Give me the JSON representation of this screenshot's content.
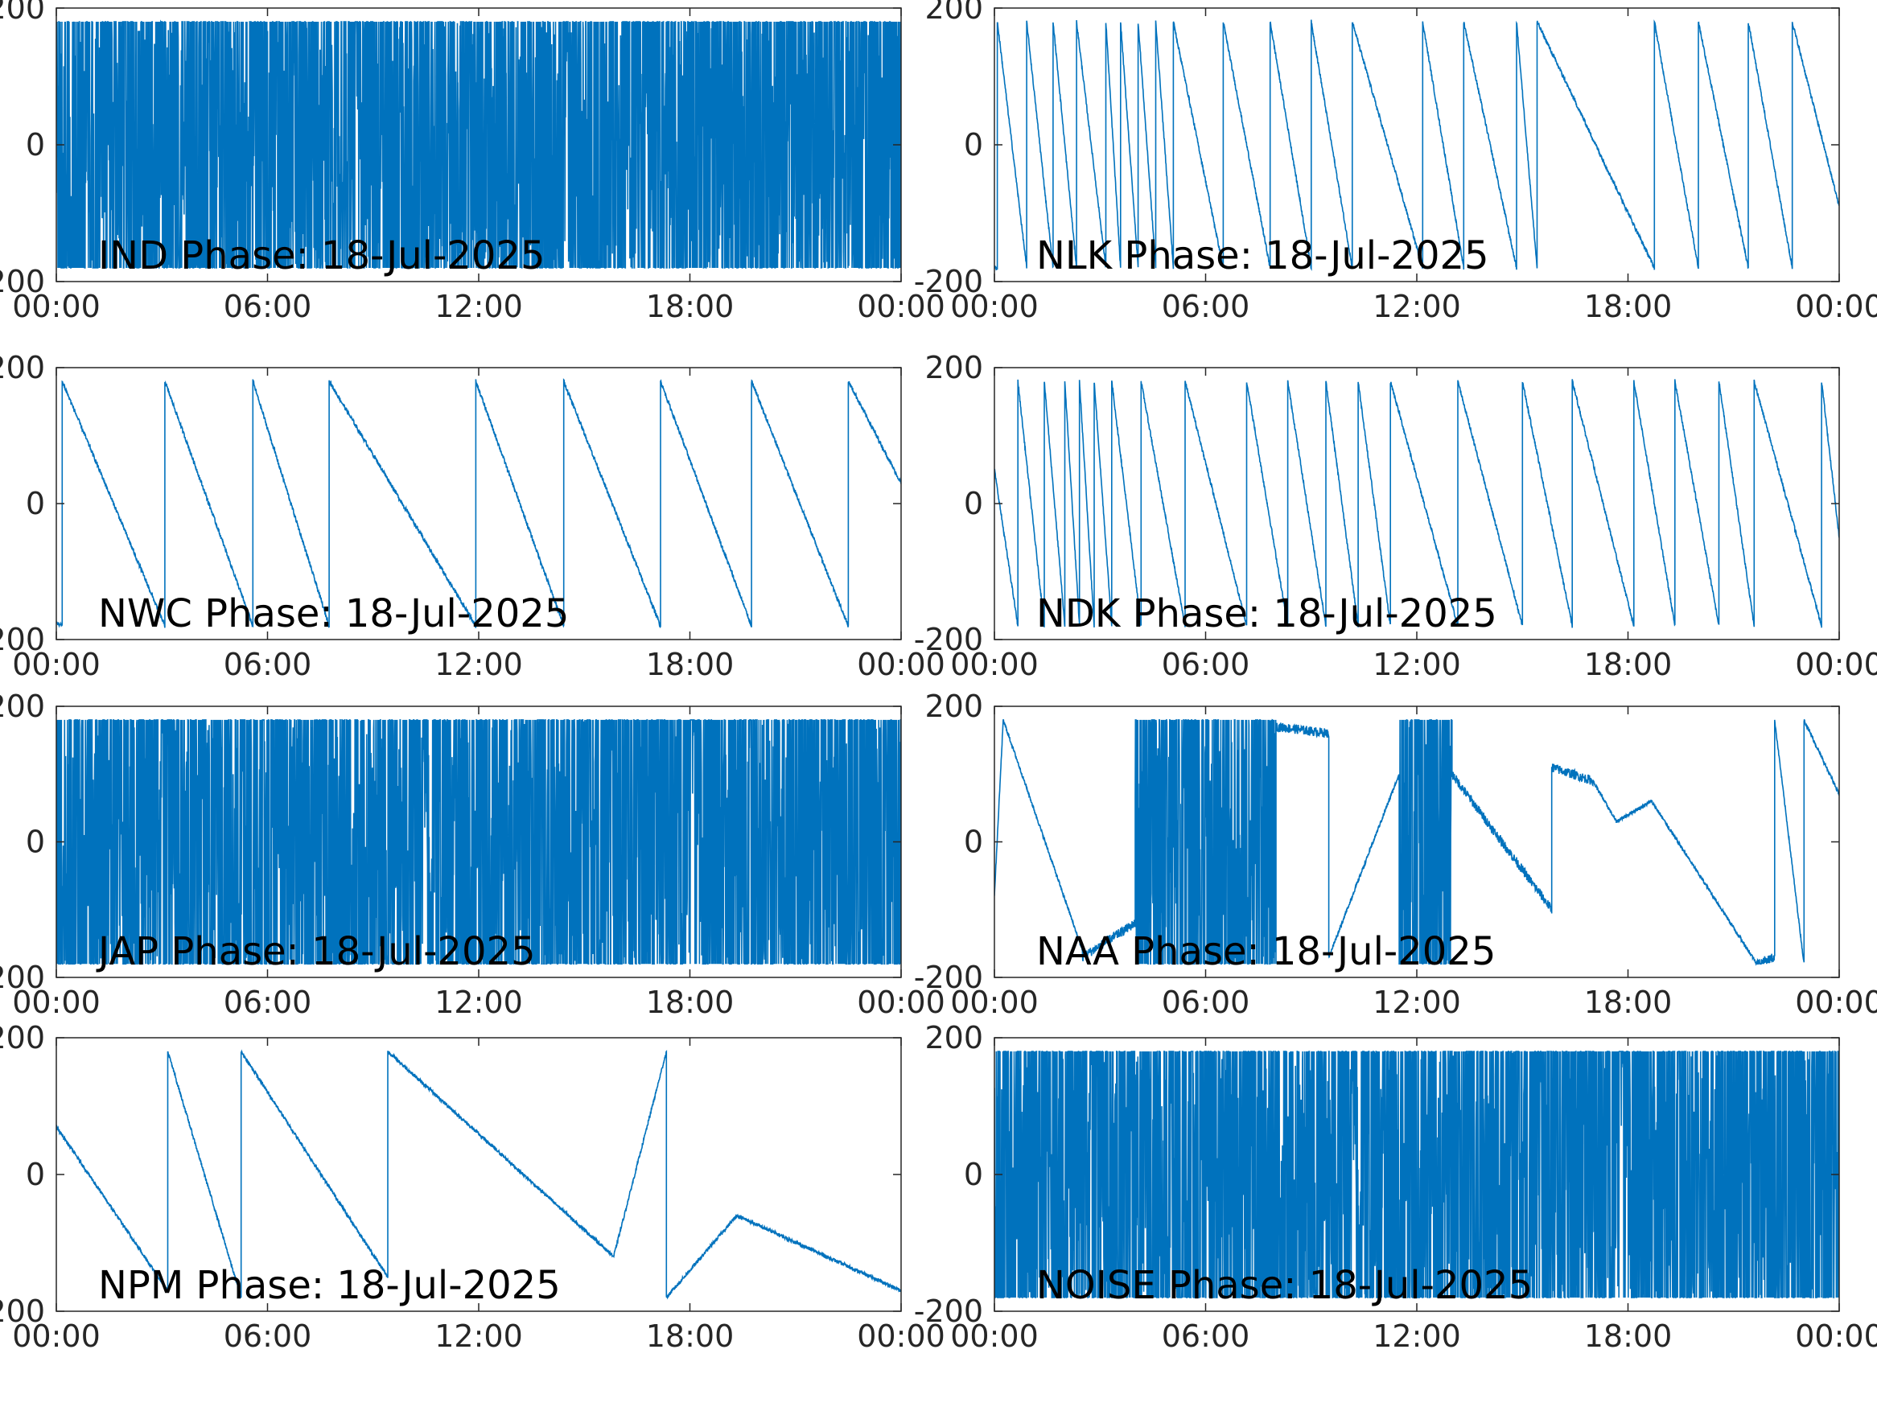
{
  "chart_data": [
    {
      "type": "line",
      "title": "IND Phase: 18-Jul-2025",
      "xlim": [
        "00:00",
        "24:00"
      ],
      "xticks": [
        "00:00",
        "06:00",
        "12:00",
        "18:00",
        "00:00"
      ],
      "ylim": [
        -200,
        200
      ],
      "yticks": [
        "-200",
        "0",
        "200"
      ],
      "color": "#0072BD",
      "grid": false,
      "segments": [
        {
          "start": "00:00",
          "end": "24:00",
          "shape": "dense-wrap",
          "y_range": [
            -180,
            180
          ]
        }
      ]
    },
    {
      "type": "line",
      "title": "NLK Phase: 18-Jul-2025",
      "xlim": [
        "00:00",
        "24:00"
      ],
      "xticks": [
        "00:00",
        "06:00",
        "12:00",
        "18:00",
        "00:00"
      ],
      "ylim": [
        -200,
        200
      ],
      "yticks": [
        "-200",
        "0",
        "200"
      ],
      "color": "#0072BD",
      "grid": false,
      "y_start": -180,
      "wraps": [
        "00:05",
        "00:55",
        "01:40",
        "02:20",
        "03:10",
        "03:35",
        "04:05",
        "04:35",
        "05:05",
        "06:30",
        "07:50",
        "09:00",
        "10:10",
        "12:10",
        "13:20",
        "14:50",
        "15:25",
        "18:45",
        "20:00",
        "21:25",
        "22:40"
      ],
      "y_end": -90
    },
    {
      "type": "line",
      "title": "NWC Phase: 18-Jul-2025",
      "xlim": [
        "00:00",
        "24:00"
      ],
      "xticks": [
        "00:00",
        "06:00",
        "12:00",
        "18:00",
        "00:00"
      ],
      "ylim": [
        -200,
        200
      ],
      "yticks": [
        "-200",
        "0",
        "200"
      ],
      "color": "#0072BD",
      "grid": false,
      "y_start": -175,
      "wraps": [
        "00:10",
        "03:05",
        "05:35",
        "07:45",
        "11:55",
        "14:25",
        "17:10",
        "19:45",
        "22:30"
      ],
      "y_end": 30
    },
    {
      "type": "line",
      "title": "NDK Phase: 18-Jul-2025",
      "xlim": [
        "00:00",
        "24:00"
      ],
      "xticks": [
        "00:00",
        "06:00",
        "12:00",
        "18:00",
        "00:00"
      ],
      "ylim": [
        -200,
        200
      ],
      "yticks": [
        "-200",
        "0",
        "200"
      ],
      "color": "#0072BD",
      "grid": false,
      "y_start": 50,
      "wraps": [
        "00:40",
        "01:25",
        "02:00",
        "02:25",
        "02:50",
        "03:20",
        "04:10",
        "05:25",
        "07:10",
        "08:20",
        "09:25",
        "10:20",
        "11:15",
        "13:10",
        "15:00",
        "16:25",
        "18:10",
        "19:20",
        "20:35",
        "21:35",
        "23:30"
      ],
      "y_end": -50
    },
    {
      "type": "line",
      "title": "JAP Phase: 18-Jul-2025",
      "xlim": [
        "00:00",
        "24:00"
      ],
      "xticks": [
        "00:00",
        "06:00",
        "12:00",
        "18:00",
        "00:00"
      ],
      "ylim": [
        -200,
        200
      ],
      "yticks": [
        "-200",
        "0",
        "200"
      ],
      "color": "#0072BD",
      "grid": false,
      "segments": [
        {
          "start": "00:00",
          "end": "24:00",
          "shape": "dense-wrap",
          "y_range": [
            -180,
            180
          ]
        }
      ]
    },
    {
      "type": "line",
      "title": "NAA Phase: 18-Jul-2025",
      "xlim": [
        "00:00",
        "24:00"
      ],
      "xticks": [
        "00:00",
        "06:00",
        "12:00",
        "18:00",
        "00:00"
      ],
      "ylim": [
        -200,
        200
      ],
      "yticks": [
        "-200",
        "0",
        "200"
      ],
      "color": "#0072BD",
      "grid": false,
      "segments": [
        {
          "start": "00:00",
          "end": "00:15",
          "shape": "ramp",
          "y": [
            -80,
            180
          ]
        },
        {
          "start": "00:15",
          "end": "02:30",
          "shape": "ramp",
          "y": [
            180,
            -160
          ]
        },
        {
          "start": "02:30",
          "end": "04:00",
          "shape": "noisy",
          "y": [
            -170,
            -120
          ]
        },
        {
          "start": "04:00",
          "end": "08:00",
          "shape": "dense-wrap",
          "y_range": [
            -180,
            180
          ]
        },
        {
          "start": "08:00",
          "end": "09:30",
          "shape": "noisy",
          "y": [
            170,
            160
          ]
        },
        {
          "start": "09:30",
          "end": "11:30",
          "shape": "ramp",
          "y": [
            -170,
            100
          ]
        },
        {
          "start": "11:30",
          "end": "13:00",
          "shape": "dense-wrap",
          "y_range": [
            -180,
            180
          ]
        },
        {
          "start": "13:00",
          "end": "15:50",
          "shape": "noisy",
          "y": [
            100,
            -100
          ]
        },
        {
          "start": "15:50",
          "end": "17:00",
          "shape": "noisy",
          "y": [
            110,
            90
          ]
        },
        {
          "start": "17:00",
          "end": "17:40",
          "shape": "ramp",
          "y": [
            90,
            30
          ]
        },
        {
          "start": "17:40",
          "end": "18:40",
          "shape": "ramp",
          "y": [
            30,
            60
          ]
        },
        {
          "start": "18:40",
          "end": "21:40",
          "shape": "ramp",
          "y": [
            60,
            -180
          ]
        },
        {
          "start": "21:40",
          "end": "22:10",
          "shape": "noisy",
          "y": [
            -180,
            -170
          ]
        },
        {
          "start": "22:10",
          "end": "23:00",
          "shape": "ramp",
          "y": [
            180,
            -180
          ]
        },
        {
          "start": "23:00",
          "end": "24:00",
          "shape": "ramp",
          "y": [
            180,
            70
          ]
        }
      ]
    },
    {
      "type": "line",
      "title": "NPM Phase: 18-Jul-2025",
      "xlim": [
        "00:00",
        "24:00"
      ],
      "xticks": [
        "00:00",
        "06:00",
        "12:00",
        "18:00",
        "00:00"
      ],
      "ylim": [
        -200,
        200
      ],
      "yticks": [
        "-200",
        "0",
        "200"
      ],
      "color": "#0072BD",
      "grid": false,
      "segments": [
        {
          "start": "00:00",
          "end": "03:10",
          "shape": "ramp",
          "y": [
            70,
            -170
          ]
        },
        {
          "start": "03:10",
          "end": "05:15",
          "shape": "ramp",
          "y": [
            180,
            -180
          ]
        },
        {
          "start": "05:15",
          "end": "09:25",
          "shape": "ramp",
          "y": [
            180,
            -150
          ]
        },
        {
          "start": "09:25",
          "end": "15:50",
          "shape": "ramp",
          "y": [
            180,
            -120
          ]
        },
        {
          "start": "15:50",
          "end": "17:20",
          "shape": "ramp",
          "y": [
            -120,
            180
          ]
        },
        {
          "start": "17:20",
          "end": "19:20",
          "shape": "ramp",
          "y": [
            -180,
            -60
          ]
        },
        {
          "start": "19:20",
          "end": "24:00",
          "shape": "ramp",
          "y": [
            -60,
            -170
          ]
        }
      ]
    },
    {
      "type": "line",
      "title": "NOISE Phase: 18-Jul-2025",
      "xlim": [
        "00:00",
        "24:00"
      ],
      "xticks": [
        "00:00",
        "06:00",
        "12:00",
        "18:00",
        "00:00"
      ],
      "ylim": [
        -200,
        200
      ],
      "yticks": [
        "-200",
        "0",
        "200"
      ],
      "color": "#0072BD",
      "grid": false,
      "segments": [
        {
          "start": "00:00",
          "end": "24:00",
          "shape": "dense-wrap",
          "y_range": [
            -180,
            180
          ]
        }
      ]
    }
  ]
}
